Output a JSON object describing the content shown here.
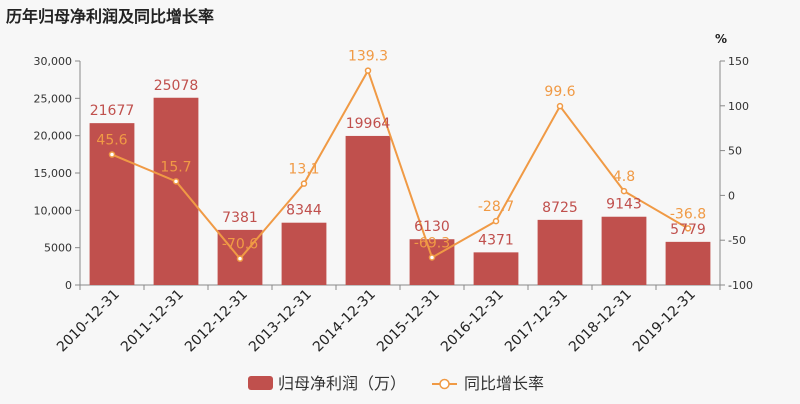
{
  "page": {
    "title": "历年归母净利润及同比增长率"
  },
  "colors": {
    "bar": "#c0504d",
    "line": "#f09a45",
    "axis": "#888888",
    "grid": "#e6e6e6",
    "background": "#f7f7f7"
  },
  "chart_data": {
    "type": "bar",
    "title": "历年归母净利润及同比增长率",
    "categories": [
      "2010-12-31",
      "2011-12-31",
      "2012-12-31",
      "2013-12-31",
      "2014-12-31",
      "2015-12-31",
      "2016-12-31",
      "2017-12-31",
      "2018-12-31",
      "2019-12-31"
    ],
    "series": [
      {
        "name": "归母净利润（万）",
        "type": "bar",
        "axis": "left",
        "values": [
          21677,
          25078,
          7381,
          8344,
          19964,
          6130,
          4371,
          8725,
          9143,
          5779
        ],
        "labels": [
          "21677",
          "25078",
          "7381",
          "8344",
          "19964",
          "6130",
          "4371",
          "8725",
          "9143",
          "5779"
        ]
      },
      {
        "name": "同比增长率",
        "type": "line",
        "axis": "right",
        "values": [
          45.6,
          15.7,
          -70.6,
          13.1,
          139.3,
          -69.3,
          -28.7,
          99.6,
          4.8,
          -36.8
        ],
        "labels": [
          "45.6",
          "15.7",
          "-70.6",
          "13.1",
          "139.3",
          "-69.3",
          "-28.7",
          "99.6",
          "4.8",
          "-36.8"
        ]
      }
    ],
    "y_left": {
      "ylim": [
        0,
        30000
      ],
      "ticks": [
        0,
        5000,
        10000,
        15000,
        20000,
        25000,
        30000
      ],
      "tick_labels": [
        "0",
        "5000",
        "10,000",
        "15,000",
        "20,000",
        "25,000",
        "30,000"
      ]
    },
    "y_right": {
      "label": "%",
      "ylim": [
        -100,
        150
      ],
      "ticks": [
        -100,
        -50,
        0,
        50,
        100,
        150
      ],
      "tick_labels": [
        "-100",
        "-50",
        "0",
        "50",
        "100",
        "150"
      ]
    },
    "legend": {
      "position": "bottom-center",
      "items": [
        "归母净利润（万）",
        "同比增长率"
      ]
    },
    "grid": false
  }
}
